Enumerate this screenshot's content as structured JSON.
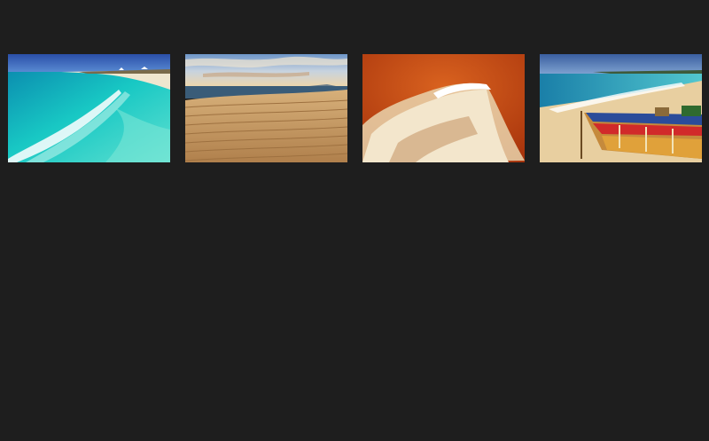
{
  "page": {
    "background_color": "#1e1e1e"
  },
  "gallery": {
    "thumbnails": [
      {
        "subject": "turquoise-beach-waves",
        "accent": "#19c3c0"
      },
      {
        "subject": "sand-dunes-sea-sunset",
        "accent": "#c9a063"
      },
      {
        "subject": "red-sand-foam-wave",
        "accent": "#c5531a"
      },
      {
        "subject": "beach-with-wooden-boat",
        "accent": "#2b7fb8"
      }
    ]
  }
}
